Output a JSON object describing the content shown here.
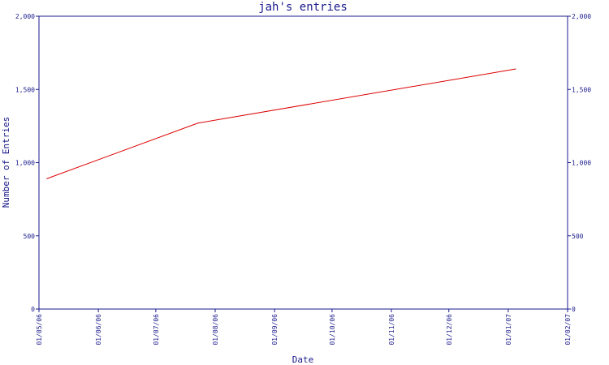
{
  "chart_data": {
    "type": "line",
    "title": "jah's entries",
    "xlabel": "Date",
    "ylabel": "Number of Entries",
    "ylim": [
      0,
      2000
    ],
    "y_ticks": [
      0,
      500,
      1000,
      1500,
      2000
    ],
    "y_tick_labels": [
      "0",
      "500",
      "1,000",
      "1,500",
      "2,000"
    ],
    "x_ticks": [
      "2006-05-01",
      "2006-06-01",
      "2006-07-01",
      "2006-08-01",
      "2006-09-01",
      "2006-10-01",
      "2006-11-01",
      "2006-12-01",
      "2007-01-01",
      "2007-02-01"
    ],
    "x_tick_labels": [
      "01/05/06",
      "01/06/06",
      "01/07/06",
      "01/08/06",
      "01/09/06",
      "01/10/06",
      "01/11/06",
      "01/12/06",
      "01/01/07",
      "01/02/07"
    ],
    "xlim": [
      "2006-05-01",
      "2007-02-01"
    ],
    "series": [
      {
        "color": "#dd0000",
        "points": [
          {
            "x": "2006-05-05",
            "y": 890
          },
          {
            "x": "2006-07-23",
            "y": 1270
          },
          {
            "x": "2007-01-05",
            "y": 1640
          }
        ]
      }
    ],
    "right_axis_mirror": true,
    "grid": false,
    "axis_color": "#1a1a8c"
  }
}
